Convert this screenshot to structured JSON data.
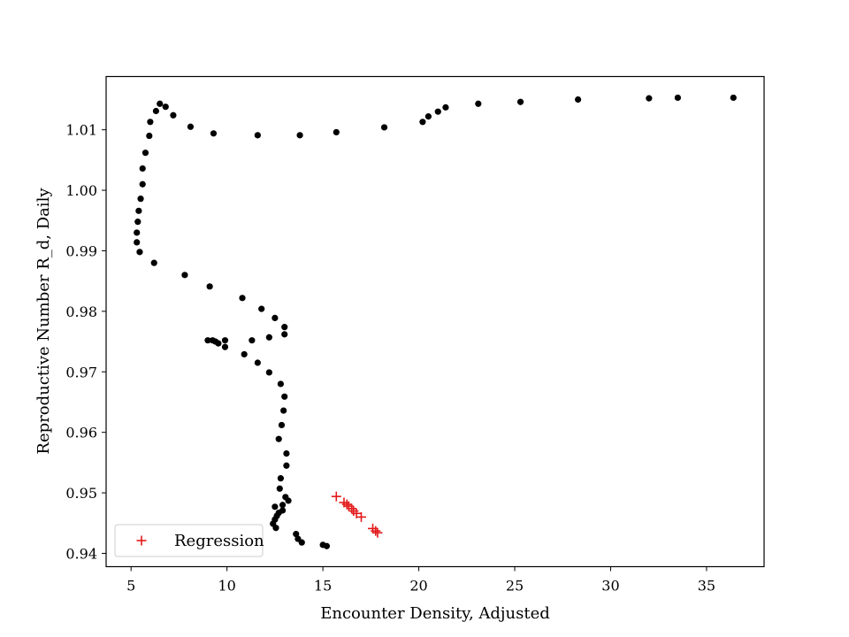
{
  "chart_data": {
    "type": "scatter",
    "title": "",
    "xlabel": "Encounter Density, Adjusted",
    "ylabel": "Reproductive Number R_d, Daily",
    "xlim": [
      3.7,
      38.0
    ],
    "ylim": [
      0.9378,
      1.0188
    ],
    "xticks": [
      5,
      10,
      15,
      20,
      25,
      30,
      35
    ],
    "yticks": [
      0.94,
      0.95,
      0.96,
      0.97,
      0.98,
      0.99,
      1.0,
      1.01
    ],
    "ytick_labels": [
      "0.94",
      "0.95",
      "0.96",
      "0.97",
      "0.98",
      "0.99",
      "1.00",
      "1.01"
    ],
    "grid": false,
    "legend": {
      "placement": "lower-left",
      "entries": [
        "Regression"
      ]
    },
    "series": [
      {
        "marker": "dot",
        "color": "#000000",
        "points": [
          [
            36.4,
            1.0153
          ],
          [
            33.5,
            1.0153
          ],
          [
            32.0,
            1.0152
          ],
          [
            28.3,
            1.015
          ],
          [
            25.3,
            1.0146
          ],
          [
            23.1,
            1.0143
          ],
          [
            21.4,
            1.0137
          ],
          [
            21.0,
            1.013
          ],
          [
            20.5,
            1.0122
          ],
          [
            20.2,
            1.0113
          ],
          [
            18.2,
            1.0104
          ],
          [
            15.7,
            1.0096
          ],
          [
            13.8,
            1.0091
          ],
          [
            11.6,
            1.0091
          ],
          [
            9.3,
            1.0094
          ],
          [
            8.1,
            1.0105
          ],
          [
            7.2,
            1.0124
          ],
          [
            6.8,
            1.0138
          ],
          [
            6.5,
            1.0143
          ],
          [
            6.3,
            1.0131
          ],
          [
            6.0,
            1.0113
          ],
          [
            5.95,
            1.009
          ],
          [
            5.75,
            1.0062
          ],
          [
            5.6,
            1.0036
          ],
          [
            5.6,
            1.001
          ],
          [
            5.5,
            0.9986
          ],
          [
            5.4,
            0.9966
          ],
          [
            5.35,
            0.9948
          ],
          [
            5.3,
            0.993
          ],
          [
            5.3,
            0.9914
          ],
          [
            5.45,
            0.9898
          ],
          [
            6.2,
            0.988
          ],
          [
            7.8,
            0.986
          ],
          [
            9.1,
            0.9841
          ],
          [
            10.8,
            0.9822
          ],
          [
            11.8,
            0.9804
          ],
          [
            12.5,
            0.9789
          ],
          [
            13.0,
            0.9774
          ],
          [
            13.0,
            0.9762
          ],
          [
            12.2,
            0.9757
          ],
          [
            11.3,
            0.9752
          ],
          [
            9.9,
            0.9752
          ],
          [
            9.0,
            0.9752
          ],
          [
            9.25,
            0.9752
          ],
          [
            9.4,
            0.975
          ],
          [
            9.55,
            0.9747
          ],
          [
            9.9,
            0.9741
          ],
          [
            10.9,
            0.9729
          ],
          [
            11.6,
            0.9715
          ],
          [
            12.2,
            0.9699
          ],
          [
            12.8,
            0.968
          ],
          [
            13.0,
            0.9659
          ],
          [
            12.95,
            0.9636
          ],
          [
            12.85,
            0.9612
          ],
          [
            12.7,
            0.9589
          ],
          [
            13.1,
            0.9565
          ],
          [
            13.1,
            0.9545
          ],
          [
            12.8,
            0.9524
          ],
          [
            12.75,
            0.9507
          ],
          [
            13.05,
            0.9493
          ],
          [
            13.2,
            0.9487
          ],
          [
            12.9,
            0.948
          ],
          [
            12.5,
            0.9477
          ],
          [
            12.9,
            0.9471
          ],
          [
            12.7,
            0.9467
          ],
          [
            12.6,
            0.9462
          ],
          [
            12.5,
            0.9456
          ],
          [
            12.4,
            0.9449
          ],
          [
            12.55,
            0.9442
          ],
          [
            13.6,
            0.9432
          ],
          [
            13.7,
            0.9424
          ],
          [
            13.9,
            0.9418
          ],
          [
            15.0,
            0.9414
          ],
          [
            15.2,
            0.9412
          ]
        ]
      },
      {
        "name": "Regression",
        "marker": "plus",
        "color": "#e31a1a",
        "points": [
          [
            15.7,
            0.9494
          ],
          [
            16.1,
            0.9484
          ],
          [
            16.25,
            0.9481
          ],
          [
            16.35,
            0.9478
          ],
          [
            16.5,
            0.9474
          ],
          [
            16.6,
            0.947
          ],
          [
            16.75,
            0.9466
          ],
          [
            17.0,
            0.946
          ],
          [
            17.6,
            0.9441
          ],
          [
            17.75,
            0.9437
          ],
          [
            17.85,
            0.9434
          ]
        ]
      }
    ]
  }
}
